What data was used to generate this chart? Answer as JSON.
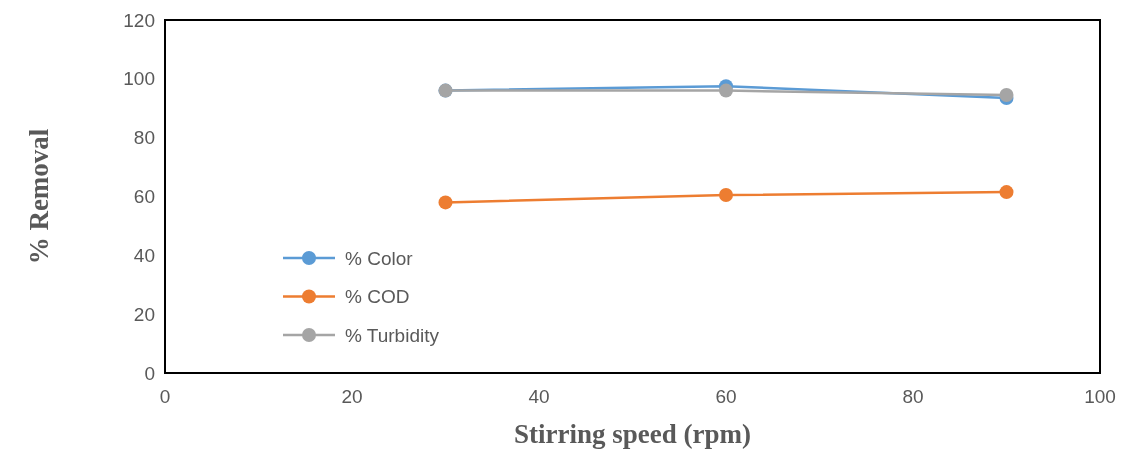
{
  "chart_data": {
    "type": "line",
    "xlabel": "Stirring speed (rpm)",
    "ylabel": "% Removal",
    "x": [
      30,
      60,
      90
    ],
    "series": [
      {
        "name": "% Color",
        "color": "#5b9bd5",
        "values": [
          96,
          97.5,
          93.5
        ]
      },
      {
        "name": "% COD",
        "color": "#ed7d31",
        "values": [
          58,
          60.5,
          61.5
        ]
      },
      {
        "name": "% Turbidity",
        "color": "#a5a5a5",
        "values": [
          96,
          96,
          94.5
        ]
      }
    ],
    "xlim": [
      0,
      100
    ],
    "xticks": [
      0,
      20,
      40,
      60,
      80,
      100
    ],
    "ylim": [
      0,
      120
    ],
    "yticks": [
      0,
      20,
      40,
      60,
      80,
      100,
      120
    ],
    "grid": false,
    "legend": "left",
    "marker": "circle",
    "line_style": "solid"
  }
}
